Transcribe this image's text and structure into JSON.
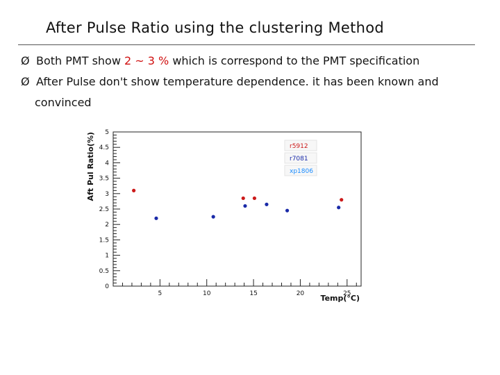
{
  "slide": {
    "title": "After Pulse Ratio using the clustering Method"
  },
  "bullets": [
    {
      "marker": "Ø",
      "pre": "Both PMT show ",
      "highlight": " 2 ~ 3 % ",
      "post": "which is correspond to the PMT specification"
    },
    {
      "marker": "Ø",
      "line1": "After Pulse don't show temperature dependence. it has been known and",
      "line2": "convinced"
    }
  ],
  "colors": {
    "r5912": "#cc1a1a",
    "r7081": "#1a2aa8",
    "xp1806": "#1a8cff"
  },
  "chart_data": {
    "type": "scatter",
    "title": "",
    "xlabel": "Temp(°C)",
    "ylabel": "Aft Pul Ratio(%)",
    "xlim": [
      0,
      26.5
    ],
    "ylim": [
      0,
      5
    ],
    "xticks": [
      5,
      10,
      15,
      20,
      25
    ],
    "yticks": [
      0,
      0.5,
      1,
      1.5,
      2,
      2.5,
      3,
      3.5,
      4,
      4.5,
      5
    ],
    "grid": false,
    "legend_position": "top-right",
    "series": [
      {
        "name": "r5912",
        "color": "#cc1a1a",
        "points": [
          [
            2.2,
            3.1
          ],
          [
            13.9,
            2.85
          ],
          [
            15.1,
            2.85
          ],
          [
            24.4,
            2.8
          ]
        ]
      },
      {
        "name": "r7081",
        "color": "#1a2aa8",
        "points": [
          [
            4.6,
            2.2
          ],
          [
            10.7,
            2.25
          ],
          [
            14.1,
            2.6
          ],
          [
            16.4,
            2.65
          ],
          [
            18.6,
            2.45
          ],
          [
            24.1,
            2.55
          ]
        ]
      },
      {
        "name": "xp1806",
        "color": "#1a8cff",
        "points": []
      }
    ]
  }
}
